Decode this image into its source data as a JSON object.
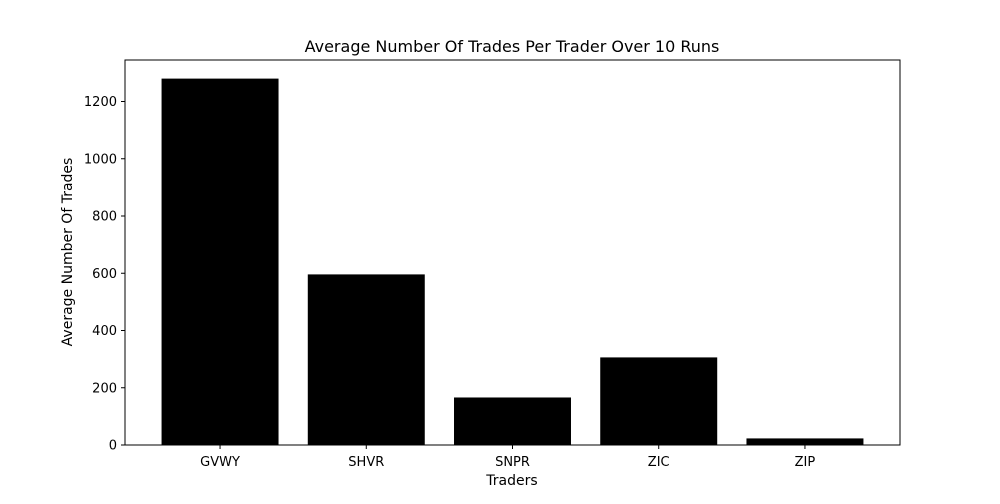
{
  "chart_data": {
    "type": "bar",
    "title": "Average Number Of Trades Per Trader Over 10 Runs",
    "xlabel": "Traders",
    "ylabel": "Average Number Of Trades",
    "categories": [
      "GVWY",
      "SHVR",
      "SNPR",
      "ZIC",
      "ZIP"
    ],
    "values": [
      1280,
      596,
      166,
      306,
      23
    ],
    "ylim": [
      0,
      1345
    ],
    "yticks": [
      0,
      200,
      400,
      600,
      800,
      1000,
      1200
    ],
    "bar_color": "#000000",
    "grid": false,
    "legend": "none"
  }
}
